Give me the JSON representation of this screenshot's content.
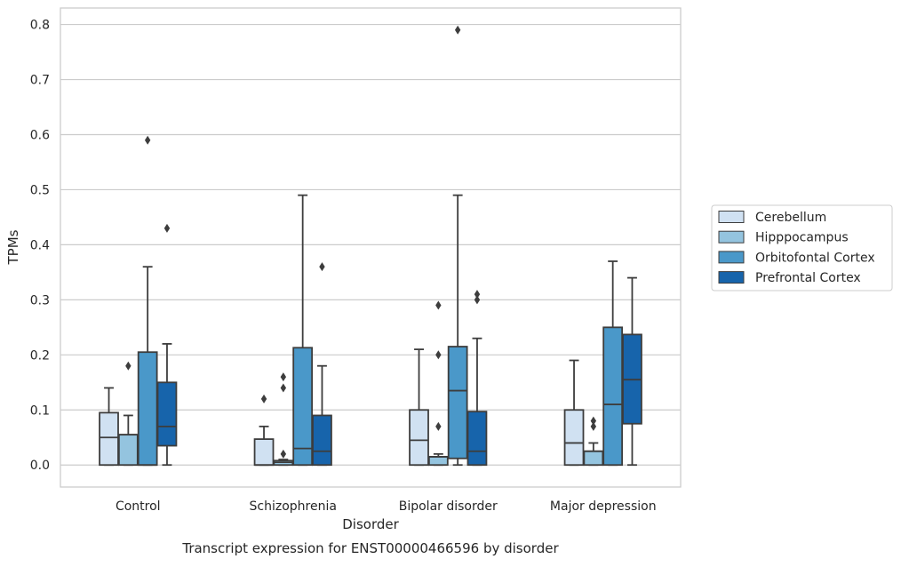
{
  "chart_data": {
    "type": "box",
    "title": "",
    "caption": "Transcript expression for ENST00000466596 by disorder",
    "xlabel": "Disorder",
    "ylabel": "TPMs",
    "ylim": [
      -0.04,
      0.83
    ],
    "yticks": [
      0.0,
      0.1,
      0.2,
      0.3,
      0.4,
      0.5,
      0.6,
      0.7,
      0.8
    ],
    "ytick_labels": [
      "0.0",
      "0.1",
      "0.2",
      "0.3",
      "0.4",
      "0.5",
      "0.6",
      "0.7",
      "0.8"
    ],
    "grid": "horizontal",
    "legend_position": "right",
    "categories": [
      "Control",
      "Schizophrenia",
      "Bipolar disorder",
      "Major depression"
    ],
    "series": [
      {
        "name": "Cerebellum",
        "color": "#d0e1f2",
        "boxes": [
          {
            "whislo": 0.0,
            "q1": 0.0,
            "med": 0.05,
            "q3": 0.095,
            "whishi": 0.14,
            "fliers": []
          },
          {
            "whislo": 0.0,
            "q1": 0.0,
            "med": 0.0,
            "q3": 0.047,
            "whishi": 0.07,
            "fliers": [
              0.12
            ]
          },
          {
            "whislo": 0.0,
            "q1": 0.0,
            "med": 0.045,
            "q3": 0.1,
            "whishi": 0.21,
            "fliers": []
          },
          {
            "whislo": 0.0,
            "q1": 0.0,
            "med": 0.04,
            "q3": 0.1,
            "whishi": 0.19,
            "fliers": []
          }
        ]
      },
      {
        "name": "Hipppocampus",
        "color": "#94c4df",
        "boxes": [
          {
            "whislo": 0.0,
            "q1": 0.0,
            "med": 0.055,
            "q3": 0.055,
            "whishi": 0.09,
            "fliers": [
              0.18
            ]
          },
          {
            "whislo": 0.0,
            "q1": 0.0,
            "med": 0.005,
            "q3": 0.008,
            "whishi": 0.01,
            "fliers": [
              0.02,
              0.14,
              0.16
            ]
          },
          {
            "whislo": 0.0,
            "q1": 0.0,
            "med": 0.015,
            "q3": 0.015,
            "whishi": 0.02,
            "fliers": [
              0.07,
              0.2,
              0.29
            ]
          },
          {
            "whislo": 0.0,
            "q1": 0.0,
            "med": 0.025,
            "q3": 0.025,
            "whishi": 0.04,
            "fliers": [
              0.07,
              0.08
            ]
          }
        ]
      },
      {
        "name": "Orbitofontal Cortex",
        "color": "#4a98c9",
        "boxes": [
          {
            "whislo": 0.0,
            "q1": 0.0,
            "med": 0.0,
            "q3": 0.205,
            "whishi": 0.36,
            "fliers": [
              0.59
            ]
          },
          {
            "whislo": 0.0,
            "q1": 0.0,
            "med": 0.03,
            "q3": 0.213,
            "whishi": 0.49,
            "fliers": []
          },
          {
            "whislo": 0.0,
            "q1": 0.012,
            "med": 0.135,
            "q3": 0.215,
            "whishi": 0.49,
            "fliers": [
              0.79
            ]
          },
          {
            "whislo": 0.0,
            "q1": 0.0,
            "med": 0.11,
            "q3": 0.25,
            "whishi": 0.37,
            "fliers": []
          }
        ]
      },
      {
        "name": "Prefrontal Cortex",
        "color": "#1764ab",
        "boxes": [
          {
            "whislo": 0.0,
            "q1": 0.035,
            "med": 0.07,
            "q3": 0.15,
            "whishi": 0.22,
            "fliers": [
              0.43
            ]
          },
          {
            "whislo": 0.0,
            "q1": 0.0,
            "med": 0.025,
            "q3": 0.09,
            "whishi": 0.18,
            "fliers": [
              0.36
            ]
          },
          {
            "whislo": 0.0,
            "q1": 0.0,
            "med": 0.025,
            "q3": 0.097,
            "whishi": 0.23,
            "fliers": [
              0.3,
              0.31
            ]
          },
          {
            "whislo": 0.0,
            "q1": 0.075,
            "med": 0.155,
            "q3": 0.237,
            "whishi": 0.34,
            "fliers": []
          }
        ]
      }
    ]
  }
}
